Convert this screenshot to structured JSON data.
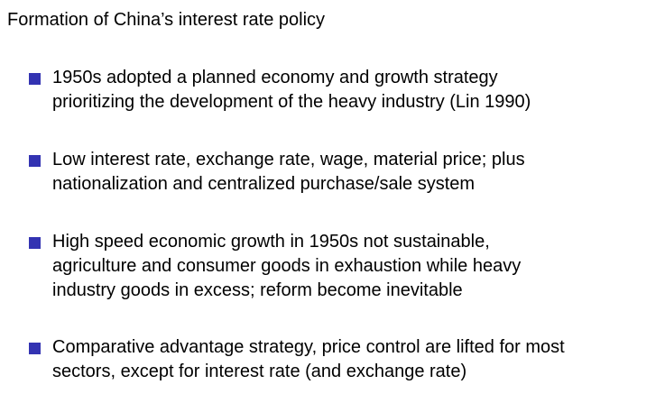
{
  "slide": {
    "title": "Formation of China’s interest rate policy",
    "bullets": [
      {
        "text": "1950s adopted a planned economy and growth strategy\nprioritizing the development of the heavy industry (Lin 1990)"
      },
      {
        "text": "Low interest rate, exchange rate, wage, material price; plus\nnationalization and centralized purchase/sale system"
      },
      {
        "text": "High speed economic growth in 1950s not sustainable,\nagriculture and consumer goods in exhaustion while heavy\nindustry goods in excess; reform become inevitable"
      },
      {
        "text": "Comparative advantage strategy, price control are lifted for most\nsectors, except for interest rate (and exchange rate)"
      }
    ],
    "accent_color": "#3333b2"
  }
}
